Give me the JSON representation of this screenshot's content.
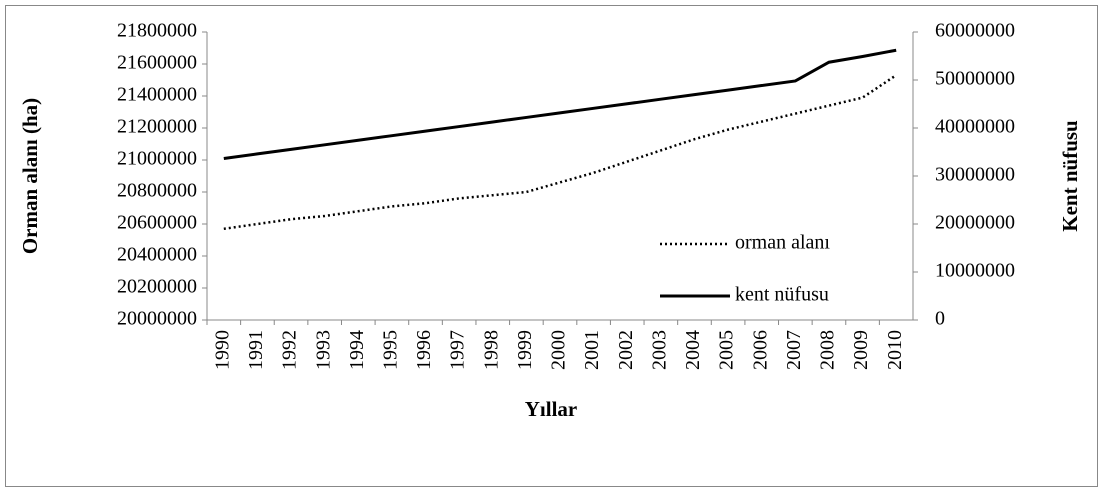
{
  "chart_data": {
    "type": "line",
    "xlabel": "Yıllar",
    "ylabel": "Orman alanı (ha)",
    "y2label": "Kent nüfusu",
    "categories": [
      "1990",
      "1991",
      "1992",
      "1993",
      "1994",
      "1995",
      "1996",
      "1997",
      "1998",
      "1999",
      "2000",
      "2001",
      "2002",
      "2003",
      "2004",
      "2005",
      "2006",
      "2007",
      "2008",
      "2009",
      "2010"
    ],
    "series": [
      {
        "name": "orman alanı",
        "color": "#000000",
        "dash": "dotted",
        "axis": "y",
        "values": [
          20570000,
          20600000,
          20630000,
          20650000,
          20680000,
          20710000,
          20730000,
          20760000,
          20780000,
          20800000,
          20860000,
          20920000,
          20990000,
          21060000,
          21130000,
          21190000,
          21240000,
          21290000,
          21340000,
          21390000,
          21530000
        ]
      },
      {
        "name": "kent nüfusu",
        "color": "#000000",
        "dash": "solid",
        "axis": "y2",
        "values": [
          33650000,
          34600000,
          35550000,
          36500000,
          37450000,
          38400000,
          39350000,
          40300000,
          41250000,
          42200000,
          43150000,
          44100000,
          45050000,
          46000000,
          46950000,
          47900000,
          48850000,
          49800000,
          53700000,
          54900000,
          56200000
        ]
      }
    ],
    "ylim": [
      20000000,
      21800000
    ],
    "yticks": [
      20000000,
      20200000,
      20400000,
      20600000,
      20800000,
      21000000,
      21200000,
      21400000,
      21600000,
      21800000
    ],
    "y2lim": [
      0,
      60000000
    ],
    "y2ticks": [
      0,
      10000000,
      20000000,
      30000000,
      40000000,
      50000000,
      60000000
    ],
    "grid": false,
    "legend": "lower right"
  }
}
